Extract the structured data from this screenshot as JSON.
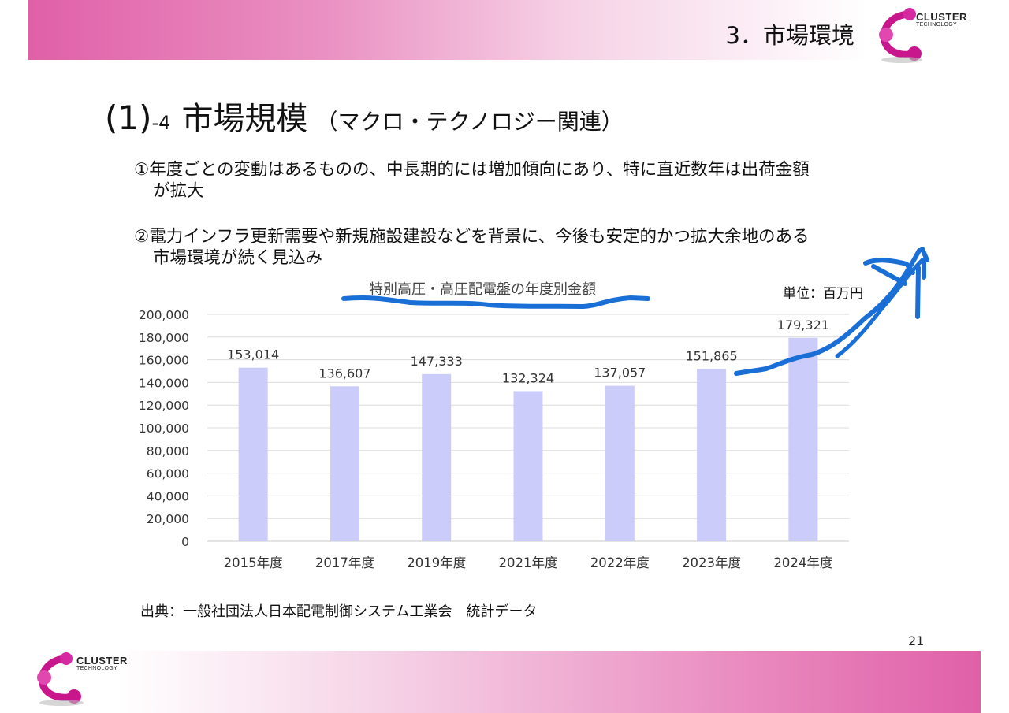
{
  "header": {
    "section_title": "3．市場環境"
  },
  "logo": {
    "line1": "CLUSTER",
    "line2": "TECHNOLOGY"
  },
  "title": {
    "number": "(1)",
    "sub": "-4",
    "main": "市場規模",
    "paren": "（マクロ・テクノロジー関連）"
  },
  "bullets": [
    {
      "line1": "①年度ごとの変動はあるものの、中長期的には増加傾向にあり、特に直近数年は出荷金額",
      "line2": "が拡大"
    },
    {
      "line1": "②電力インフラ更新需要や新規施設建設などを背景に、今後も安定的かつ拡大余地のある",
      "line2": "市場環境が続く見込み"
    }
  ],
  "chart_data": {
    "type": "bar",
    "title": "特別高圧・高圧配電盤の年度別金額",
    "unit": "単位：百万円",
    "categories": [
      "2015年度",
      "2017年度",
      "2019年度",
      "2021年度",
      "2022年度",
      "2023年度",
      "2024年度"
    ],
    "values": [
      153014,
      136607,
      147333,
      132324,
      137057,
      151865,
      179321
    ],
    "value_labels": [
      "153,014",
      "136,607",
      "147,333",
      "132,324",
      "137,057",
      "151,865",
      "179,321"
    ],
    "y_ticks": [
      "0",
      "20,000",
      "40,000",
      "60,000",
      "80,000",
      "100,000",
      "120,000",
      "140,000",
      "160,000",
      "180,000",
      "200,000"
    ],
    "ylim": [
      0,
      200000
    ],
    "grid": true,
    "bar_color": "#ccccfa",
    "annotation_color": "#1a6fd6"
  },
  "source": "出典：一般社団法人日本配電制御システム工業会　統計データ",
  "page_number": "21"
}
